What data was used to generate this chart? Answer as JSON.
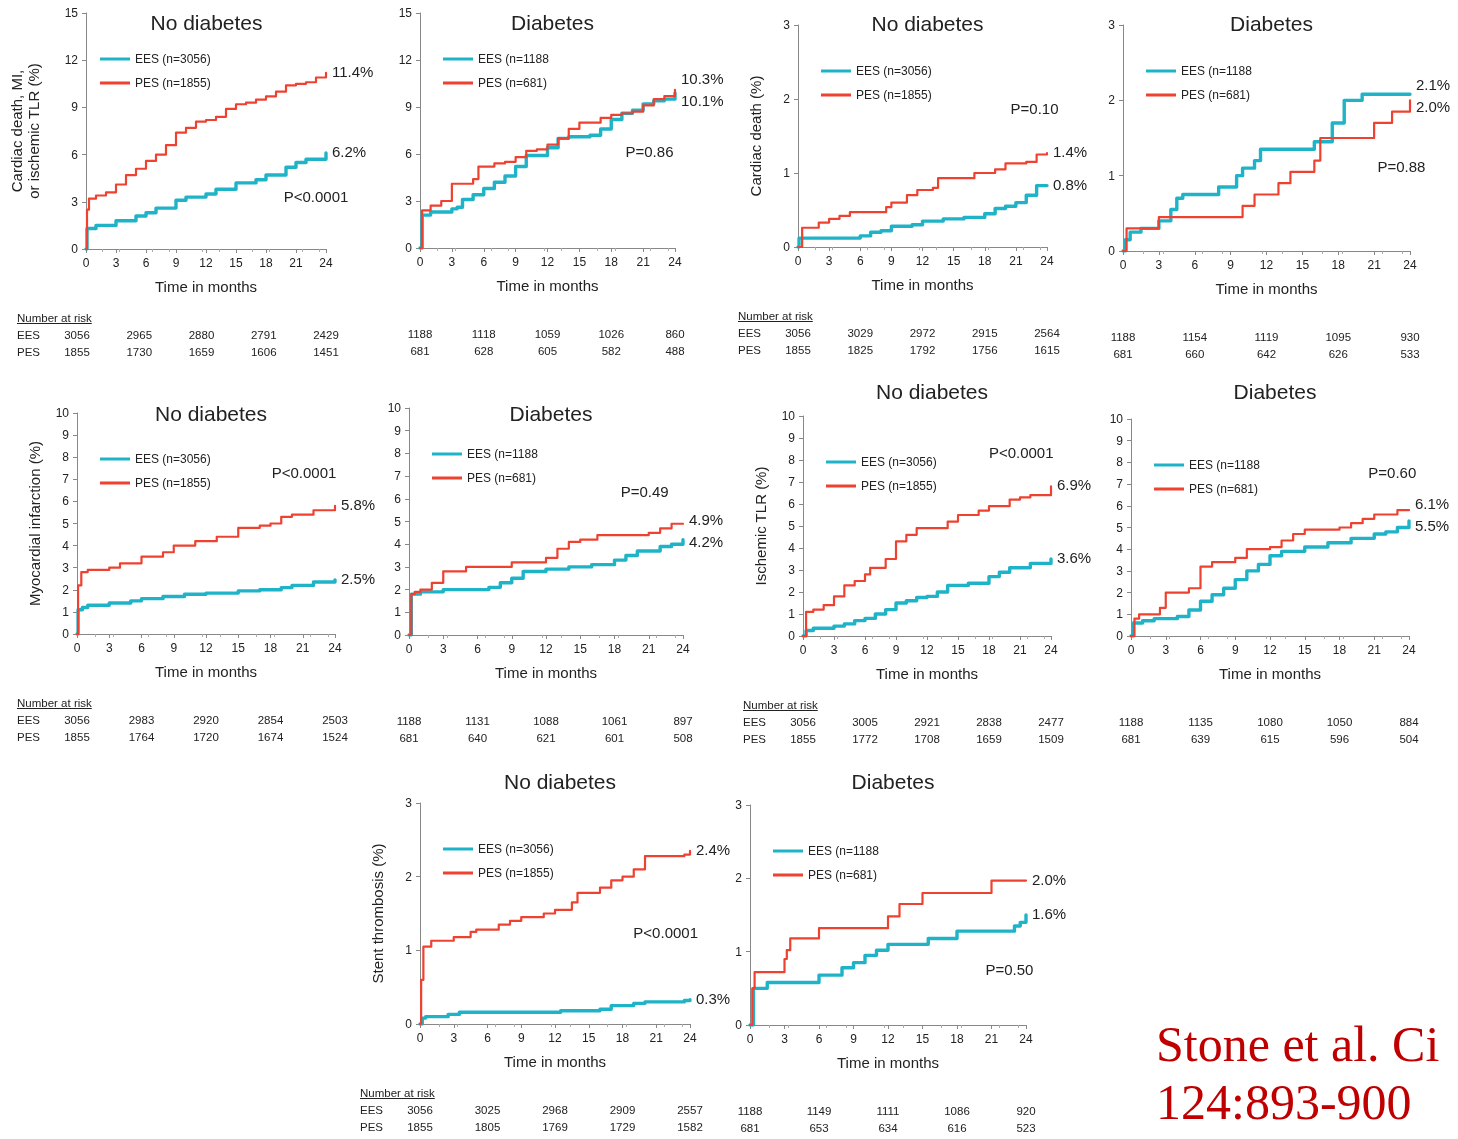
{
  "chart_data": [
    {
      "type": "step",
      "title": "No diabetes",
      "xlabel": "Time in months",
      "ylabel": "Cardiac death, MI, or ischemic TLR (%)",
      "xlim": [
        0,
        24
      ],
      "xticks": [
        0,
        3,
        6,
        9,
        12,
        15,
        18,
        21,
        24
      ],
      "ylim": [
        0,
        15
      ],
      "yticks": [
        0,
        3,
        6,
        9,
        12,
        15
      ],
      "grid": false,
      "legend": "top left",
      "marker": "none",
      "line_style": "solid",
      "series": [
        {
          "name": "EES (n=3056)",
          "color": "#1fb3c8",
          "x": [
            0,
            0.1,
            1,
            3,
            5,
            6,
            7,
            9,
            10,
            12,
            13,
            15,
            17,
            18,
            20,
            21,
            22,
            24
          ],
          "values": [
            0,
            1.3,
            1.5,
            1.8,
            2.1,
            2.3,
            2.6,
            3.1,
            3.3,
            3.5,
            3.8,
            4.2,
            4.4,
            4.7,
            5.2,
            5.5,
            5.7,
            6.1
          ]
        },
        {
          "name": "PES (n=1855)",
          "color": "#ee4130",
          "x": [
            0,
            0.1,
            0.3,
            1,
            2,
            3,
            4,
            5,
            6,
            7,
            8,
            9,
            10,
            11,
            12,
            13,
            14,
            15,
            16,
            17,
            18,
            19,
            20,
            21,
            22,
            23,
            24
          ],
          "values": [
            0,
            2.5,
            3.2,
            3.4,
            3.6,
            4.1,
            4.7,
            5.1,
            5.6,
            6.0,
            6.6,
            7.4,
            7.7,
            8.1,
            8.2,
            8.4,
            8.9,
            9.2,
            9.3,
            9.5,
            9.7,
            10.0,
            10.4,
            10.5,
            10.6,
            10.9,
            11.2
          ]
        }
      ],
      "annotations": [
        "6.2%",
        "11.4%",
        "P<0.0001",
        "Number at risk",
        "EES\t3056\t2965\t2880\t2791\t2429",
        "PES\t1855\t1730\t1659\t1606\t1451"
      ]
    },
    {
      "type": "step",
      "title": "Diabetes",
      "xlabel": "Time in months",
      "xlim": [
        0,
        24
      ],
      "xticks": [
        0,
        3,
        6,
        9,
        12,
        15,
        18,
        21,
        24
      ],
      "ylim": [
        0,
        15
      ],
      "yticks": [
        0,
        3,
        6,
        9,
        12,
        15
      ],
      "grid": false,
      "legend": "top left",
      "marker": "none",
      "line_style": "solid",
      "series": [
        {
          "name": "EES (n=1188",
          "color": "#1fb3c8",
          "x": [
            0,
            0.2,
            1,
            3,
            3.5,
            4,
            5,
            6,
            7,
            8,
            9,
            10,
            12,
            13,
            14,
            16,
            17,
            18,
            19,
            20,
            21,
            22,
            23,
            24
          ],
          "values": [
            0,
            2.1,
            2.3,
            2.5,
            2.6,
            3.1,
            3.4,
            3.8,
            4.2,
            4.6,
            5.2,
            5.9,
            6.4,
            7.0,
            7.1,
            7.2,
            7.6,
            8.2,
            8.6,
            8.8,
            9.2,
            9.4,
            9.5,
            9.9
          ]
        },
        {
          "name": "PES (n=681)",
          "color": "#ee4130",
          "x": [
            0,
            0.2,
            1,
            2,
            3,
            5,
            5.5,
            7,
            8,
            9,
            10,
            11,
            12,
            13,
            14,
            15,
            17,
            18,
            19,
            20,
            21,
            22,
            23,
            24
          ],
          "values": [
            0,
            2.4,
            2.7,
            3.0,
            4.1,
            4.4,
            5.2,
            5.4,
            5.5,
            5.8,
            6.2,
            6.3,
            6.6,
            7.0,
            7.6,
            8.0,
            8.3,
            8.5,
            8.6,
            8.7,
            9.1,
            9.5,
            9.7,
            10.1
          ]
        }
      ],
      "annotations": [
        "10.1%",
        "10.3%",
        "P=0.86",
        "1188\t1118\t1059\t1026\t860",
        "681\t628\t605\t582\t488"
      ]
    },
    {
      "type": "step",
      "title": "No diabetes",
      "xlabel": "Time in months",
      "ylabel": "Cardiac death (%)",
      "xlim": [
        0,
        24
      ],
      "xticks": [
        0,
        3,
        6,
        9,
        12,
        15,
        18,
        21,
        24
      ],
      "ylim": [
        0,
        3
      ],
      "yticks": [
        0,
        1,
        2,
        3
      ],
      "grid": false,
      "legend": "top left",
      "marker": "none",
      "line_style": "solid",
      "series": [
        {
          "name": "EES (n=3056)",
          "color": "#1fb3c8",
          "x": [
            0,
            0.1,
            6,
            7,
            8,
            9,
            11,
            12,
            14,
            16,
            18,
            19,
            20,
            21,
            22,
            23,
            24
          ],
          "values": [
            0,
            0.12,
            0.15,
            0.2,
            0.22,
            0.28,
            0.3,
            0.35,
            0.38,
            0.4,
            0.45,
            0.52,
            0.55,
            0.6,
            0.7,
            0.83,
            0.83
          ]
        },
        {
          "name": "PES (n=1855)",
          "color": "#ee4130",
          "x": [
            0,
            0.4,
            2,
            3,
            4,
            5,
            8.5,
            9,
            10.5,
            11.5,
            13,
            13.5,
            17,
            19,
            20,
            22,
            23,
            24
          ],
          "values": [
            0,
            0.26,
            0.33,
            0.38,
            0.42,
            0.47,
            0.54,
            0.6,
            0.7,
            0.77,
            0.8,
            0.93,
            1.0,
            1.05,
            1.13,
            1.15,
            1.25,
            1.27
          ]
        }
      ],
      "annotations": [
        "0.8%",
        "1.4%",
        "P=0.10",
        "Number at risk",
        "EES\t3056\t3029\t2972\t2915\t2564",
        "PES\t1855\t1825\t1792\t1756\t1615"
      ]
    },
    {
      "type": "step",
      "title": "Diabetes",
      "xlabel": "Time in months",
      "xlim": [
        0,
        24
      ],
      "xticks": [
        0,
        3,
        6,
        9,
        12,
        15,
        18,
        21,
        24
      ],
      "ylim": [
        0,
        3
      ],
      "yticks": [
        0,
        1,
        2,
        3
      ],
      "grid": false,
      "legend": "top left",
      "marker": "none",
      "line_style": "solid",
      "series": [
        {
          "name": "EES (n=1188",
          "color": "#1fb3c8",
          "x": [
            0,
            0.2,
            0.6,
            1.5,
            3,
            4,
            4.5,
            5,
            8,
            9.5,
            10,
            11,
            11.5,
            16,
            17.5,
            18.5,
            20,
            24
          ],
          "values": [
            0,
            0.15,
            0.25,
            0.3,
            0.4,
            0.55,
            0.7,
            0.75,
            0.85,
            1.0,
            1.1,
            1.2,
            1.35,
            1.45,
            1.7,
            2.0,
            2.08,
            2.08
          ]
        },
        {
          "name": "PES (n=681)",
          "color": "#ee4130",
          "x": [
            0,
            0.3,
            3,
            10,
            11,
            13,
            14,
            16,
            16.5,
            21,
            22.5,
            24
          ],
          "values": [
            0,
            0.3,
            0.45,
            0.6,
            0.75,
            0.9,
            1.05,
            1.2,
            1.5,
            1.7,
            1.85,
            2.0
          ]
        }
      ],
      "annotations": [
        "2.1%",
        "2.0%",
        "P=0.88",
        "1188\t1154\t1119\t1095\t930",
        "681\t660\t642\t626\t533"
      ]
    },
    {
      "type": "step",
      "title": "No diabetes",
      "xlabel": "Time in months",
      "ylabel": "Myocardial infarction (%)",
      "xlim": [
        0,
        24
      ],
      "xticks": [
        0,
        3,
        6,
        9,
        12,
        15,
        18,
        21,
        24
      ],
      "ylim": [
        0,
        10
      ],
      "yticks": [
        0,
        1,
        2,
        3,
        4,
        5,
        6,
        7,
        8,
        9,
        10
      ],
      "grid": false,
      "legend": "top left",
      "marker": "none",
      "line_style": "solid",
      "series": [
        {
          "name": "EES (n=3056)",
          "color": "#1fb3c8",
          "x": [
            0,
            0.1,
            0.5,
            1,
            3,
            5,
            6,
            8,
            10,
            12,
            15,
            17,
            19,
            20,
            22,
            24
          ],
          "values": [
            0,
            1.1,
            1.2,
            1.3,
            1.4,
            1.5,
            1.6,
            1.7,
            1.8,
            1.85,
            1.95,
            2.0,
            2.1,
            2.2,
            2.35,
            2.45
          ]
        },
        {
          "name": "PES (n=1855)",
          "color": "#ee4130",
          "x": [
            0,
            0.1,
            0.4,
            1,
            3,
            4,
            6,
            8,
            9,
            11,
            13,
            15,
            17,
            18,
            19,
            20,
            22,
            24
          ],
          "values": [
            0,
            2.2,
            2.8,
            2.9,
            3.0,
            3.2,
            3.5,
            3.7,
            4.0,
            4.2,
            4.4,
            4.8,
            4.9,
            5.0,
            5.3,
            5.4,
            5.6,
            5.8
          ]
        }
      ],
      "annotations": [
        "2.5%",
        "5.8%",
        "P<0.0001",
        "Number at risk",
        "EES\t3056\t2983\t2920\t2854\t2503",
        "PES\t1855\t1764\t1720\t1674\t1524"
      ]
    },
    {
      "type": "step",
      "title": "Diabetes",
      "xlabel": "Time in months",
      "xlim": [
        0,
        24
      ],
      "xticks": [
        0,
        3,
        6,
        9,
        12,
        15,
        18,
        21,
        24
      ],
      "ylim": [
        0,
        10
      ],
      "yticks": [
        0,
        1,
        2,
        3,
        4,
        5,
        6,
        7,
        8,
        9,
        10
      ],
      "grid": false,
      "legend": "top left",
      "marker": "none",
      "line_style": "solid",
      "series": [
        {
          "name": "EES (n=1188",
          "color": "#1fb3c8",
          "x": [
            0,
            0.2,
            1,
            3,
            7,
            8,
            9,
            10,
            12,
            14,
            16,
            18,
            19,
            20,
            22,
            23,
            24
          ],
          "values": [
            0,
            1.8,
            1.9,
            2.0,
            2.1,
            2.3,
            2.5,
            2.8,
            2.9,
            3.0,
            3.1,
            3.3,
            3.5,
            3.7,
            3.9,
            4.0,
            4.2
          ]
        },
        {
          "name": "PES (n=681)",
          "color": "#ee4130",
          "x": [
            0,
            0.2,
            0.5,
            1,
            2,
            3,
            5,
            9,
            12,
            13,
            14,
            15,
            16.5,
            21,
            22,
            23,
            24
          ],
          "values": [
            0,
            1.8,
            1.9,
            2.0,
            2.3,
            2.8,
            3.0,
            3.2,
            3.4,
            3.8,
            4.1,
            4.2,
            4.4,
            4.5,
            4.7,
            4.9,
            4.9
          ]
        }
      ],
      "annotations": [
        "4.2%",
        "4.9%",
        "P=0.49",
        "1188\t1131\t1088\t1061\t897",
        "681\t640\t621\t601\t508"
      ]
    },
    {
      "type": "step",
      "title": "No diabetes",
      "xlabel": "Time in months",
      "ylabel": "Ischemic TLR (%)",
      "xlim": [
        0,
        24
      ],
      "xticks": [
        0,
        3,
        6,
        9,
        12,
        15,
        18,
        21,
        24
      ],
      "ylim": [
        0,
        10
      ],
      "yticks": [
        0,
        1,
        2,
        3,
        4,
        5,
        6,
        7,
        8,
        9,
        10
      ],
      "grid": false,
      "legend": "top left",
      "marker": "none",
      "line_style": "solid",
      "series": [
        {
          "name": "EES (n=3056)",
          "color": "#1fb3c8",
          "x": [
            0,
            0.3,
            1,
            3,
            4,
            5,
            6,
            7,
            8,
            9,
            10,
            11,
            12,
            13,
            14,
            16,
            18,
            19,
            20,
            22,
            24
          ],
          "values": [
            0,
            0.25,
            0.35,
            0.45,
            0.55,
            0.7,
            0.8,
            1.0,
            1.2,
            1.5,
            1.6,
            1.75,
            1.8,
            2.0,
            2.3,
            2.4,
            2.7,
            2.9,
            3.1,
            3.3,
            3.5
          ]
        },
        {
          "name": "PES (n=1855)",
          "color": "#ee4130",
          "x": [
            0,
            0.3,
            1,
            2,
            3,
            4,
            5,
            6,
            6.5,
            8,
            9,
            10,
            11,
            13,
            14,
            15,
            17,
            18,
            20,
            21,
            22,
            24
          ],
          "values": [
            0,
            1.1,
            1.2,
            1.4,
            1.8,
            2.3,
            2.5,
            2.8,
            3.1,
            3.5,
            4.3,
            4.6,
            4.9,
            4.9,
            5.2,
            5.5,
            5.7,
            5.9,
            6.2,
            6.3,
            6.4,
            6.8
          ]
        }
      ],
      "annotations": [
        "3.6%",
        "6.9%",
        "P<0.0001",
        "Number at risk",
        "EES\t3056\t3005\t2921\t2838\t2477",
        "PES\t1855\t1772\t1708\t1659\t1509"
      ]
    },
    {
      "type": "step",
      "title": "Diabetes",
      "xlabel": "Time in months",
      "xlim": [
        0,
        24
      ],
      "xticks": [
        0,
        3,
        6,
        9,
        12,
        15,
        18,
        21,
        24
      ],
      "ylim": [
        0,
        10
      ],
      "yticks": [
        0,
        1,
        2,
        3,
        4,
        5,
        6,
        7,
        8,
        9,
        10
      ],
      "grid": false,
      "legend": "top left",
      "marker": "none",
      "line_style": "solid",
      "series": [
        {
          "name": "EES (n=1188",
          "color": "#1fb3c8",
          "x": [
            0,
            0.2,
            1,
            2,
            4,
            5,
            6,
            7,
            8,
            9,
            10,
            11,
            12,
            13,
            15,
            17,
            19,
            21,
            22,
            23,
            24
          ],
          "values": [
            0,
            0.6,
            0.7,
            0.8,
            0.9,
            1.2,
            1.6,
            1.9,
            2.2,
            2.6,
            3.0,
            3.3,
            3.7,
            3.9,
            4.1,
            4.3,
            4.5,
            4.7,
            4.8,
            5.0,
            5.3
          ]
        },
        {
          "name": "PES (n=681)",
          "color": "#ee4130",
          "x": [
            0,
            0.3,
            0.7,
            2.5,
            3,
            5,
            6,
            7,
            9,
            10,
            12,
            13,
            14,
            15,
            18,
            19,
            20,
            21,
            23,
            24
          ],
          "values": [
            0,
            0.8,
            1.0,
            1.3,
            2.0,
            2.2,
            3.2,
            3.4,
            3.6,
            4.0,
            4.1,
            4.4,
            4.7,
            4.9,
            5.0,
            5.2,
            5.4,
            5.6,
            5.8,
            5.8
          ]
        }
      ],
      "annotations": [
        "5.5%",
        "6.1%",
        "P=0.60",
        "1188\t1135\t1080\t1050\t884",
        "681\t639\t615\t596\t504"
      ]
    },
    {
      "type": "step",
      "title": "No diabetes",
      "xlabel": "Time in months",
      "ylabel": "Stent thrombosis (%)",
      "xlim": [
        0,
        24
      ],
      "xticks": [
        0,
        3,
        6,
        9,
        12,
        15,
        18,
        21,
        24
      ],
      "ylim": [
        0,
        3
      ],
      "yticks": [
        0,
        1,
        2,
        3
      ],
      "grid": false,
      "legend": "top left",
      "marker": "none",
      "line_style": "solid",
      "series": [
        {
          "name": "EES (n=3056)",
          "color": "#1fb3c8",
          "x": [
            0,
            0.2,
            0.5,
            2.5,
            3.5,
            12.5,
            16,
            17,
            19,
            20,
            23.5,
            24
          ],
          "values": [
            0,
            0.08,
            0.1,
            0.13,
            0.16,
            0.18,
            0.2,
            0.25,
            0.28,
            0.3,
            0.32,
            0.33
          ]
        },
        {
          "name": "PES (n=1855)",
          "color": "#ee4130",
          "x": [
            0,
            0.1,
            0.3,
            1,
            3,
            4.5,
            5,
            7,
            8,
            9,
            11,
            12,
            13.5,
            14,
            16,
            17,
            18,
            19,
            20,
            23.5,
            24
          ],
          "values": [
            0,
            0.6,
            1.05,
            1.13,
            1.18,
            1.25,
            1.28,
            1.35,
            1.4,
            1.45,
            1.5,
            1.55,
            1.65,
            1.78,
            1.85,
            1.95,
            2.0,
            2.1,
            2.28,
            2.3,
            2.35
          ]
        }
      ],
      "annotations": [
        "0.3%",
        "2.4%",
        "P<0.0001",
        "Number at risk",
        "EES\t3056\t3025\t2968\t2909\t2557",
        "PES\t1855\t1805\t1769\t1729\t1582"
      ]
    },
    {
      "type": "step",
      "title": "Diabetes",
      "xlabel": "Time in months",
      "xlim": [
        0,
        24
      ],
      "xticks": [
        0,
        3,
        6,
        9,
        12,
        15,
        18,
        21,
        24
      ],
      "ylim": [
        0,
        3
      ],
      "yticks": [
        0,
        1,
        2,
        3
      ],
      "grid": false,
      "legend": "top left",
      "marker": "none",
      "line_style": "solid",
      "series": [
        {
          "name": "EES (n=1188",
          "color": "#1fb3c8",
          "x": [
            0,
            0.3,
            1.5,
            6,
            8,
            9,
            10,
            11,
            12,
            15.5,
            18,
            23,
            23.5,
            24
          ],
          "values": [
            0,
            0.5,
            0.58,
            0.68,
            0.78,
            0.85,
            0.95,
            1.02,
            1.1,
            1.18,
            1.28,
            1.35,
            1.4,
            1.5
          ]
        },
        {
          "name": "PES (n=681)",
          "color": "#ee4130",
          "x": [
            0,
            0.2,
            0.4,
            3,
            3.2,
            3.5,
            6,
            12,
            13,
            15,
            21,
            24
          ],
          "values": [
            0,
            0.5,
            0.72,
            0.9,
            1.02,
            1.18,
            1.32,
            1.48,
            1.65,
            1.8,
            1.97,
            1.97
          ]
        }
      ],
      "annotations": [
        "1.6%",
        "2.0%",
        "P=0.50",
        "1188\t1149\t1111\t1086\t920",
        "681\t653\t634\t616\t523"
      ]
    },
    {
      "type": "other",
      "annotations": [
        "Stone et al. Ci",
        "124:893-900"
      ]
    }
  ]
}
